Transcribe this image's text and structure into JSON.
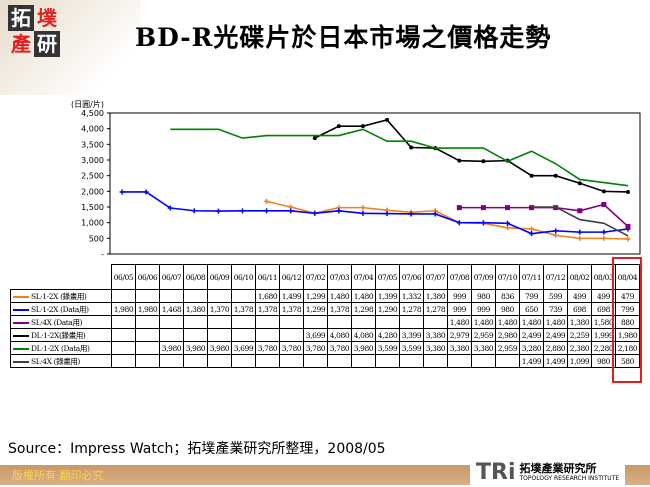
{
  "header": {
    "title": "BD-R光碟片於日本市場之價格走勢",
    "logo_chars": [
      "拓",
      "墣",
      "產",
      "研"
    ]
  },
  "chart_data": {
    "type": "line",
    "title": "BD-R光碟片於日本市場之價格走勢",
    "ylabel": "(日圓/片)",
    "ylim": [
      0,
      4500
    ],
    "yticks": [
      "4,500",
      "4,000",
      "3,500",
      "3,000",
      "2,500",
      "2,000",
      "1,500",
      "1,000",
      "500",
      "-"
    ],
    "grid": false,
    "legend": "table-below",
    "categories": [
      "06/05",
      "06/06",
      "06/07",
      "06/08",
      "06/09",
      "06/10",
      "06/11",
      "06/12",
      "07/02",
      "07/03",
      "07/04",
      "07/05",
      "07/06",
      "07/07",
      "07/08",
      "07/09",
      "07/10",
      "07/11",
      "07/12",
      "08/02",
      "08/03",
      "08/04"
    ],
    "series": [
      {
        "name": "SL‧1-2X (錄畫用)",
        "color": "#f08020",
        "marker": "plus",
        "values": [
          null,
          null,
          null,
          null,
          null,
          null,
          1680,
          1499,
          1299,
          1480,
          1480,
          1399,
          1332,
          1380,
          999,
          980,
          836,
          799,
          599,
          499,
          499,
          479
        ]
      },
      {
        "name": "SL‧1-2X (Data用)",
        "color": "#0000ff",
        "marker": "plus",
        "values": [
          1980,
          1980,
          1468,
          1380,
          1370,
          1378,
          1378,
          1378,
          1299,
          1378,
          1298,
          1290,
          1278,
          1278,
          999,
          999,
          980,
          650,
          739,
          698,
          698,
          799
        ]
      },
      {
        "name": "SL‧4X (Data用)",
        "color": "#800080",
        "marker": "square",
        "values": [
          null,
          null,
          null,
          null,
          null,
          null,
          null,
          null,
          null,
          null,
          null,
          null,
          null,
          null,
          1480,
          1480,
          1480,
          1480,
          1480,
          1380,
          1580,
          880
        ]
      },
      {
        "name": "DL‧1-2X(錄畫用)",
        "color": "#000000",
        "marker": "circle",
        "values": [
          null,
          null,
          null,
          null,
          null,
          null,
          null,
          null,
          3699,
          4080,
          4080,
          4280,
          3399,
          3380,
          2979,
          2959,
          2980,
          2499,
          2499,
          2259,
          1999,
          1980
        ]
      },
      {
        "name": "DL‧1-2X (Data用)",
        "color": "#008000",
        "marker": "none",
        "values": [
          null,
          null,
          3980,
          3980,
          3980,
          3699,
          3780,
          3780,
          3780,
          3780,
          3980,
          3599,
          3599,
          3380,
          3380,
          3380,
          2959,
          3280,
          2880,
          2380,
          2280,
          2180
        ]
      },
      {
        "name": "SL‧4X (錄畫用)",
        "color": "#404040",
        "marker": "none",
        "values": [
          null,
          null,
          null,
          null,
          null,
          null,
          null,
          null,
          null,
          null,
          null,
          null,
          null,
          null,
          null,
          null,
          null,
          1499,
          1499,
          1099,
          980,
          580
        ]
      }
    ]
  },
  "source": "Source：Impress Watch；拓墣產業研究所整理，2008/05",
  "footer": {
    "copyright": "版權所有‧翻印必究",
    "brand_mark": "TRi",
    "brand_name": "拓墣產業研究所",
    "brand_en": "TOPOLOGY RESEARCH INSTITUTE"
  }
}
